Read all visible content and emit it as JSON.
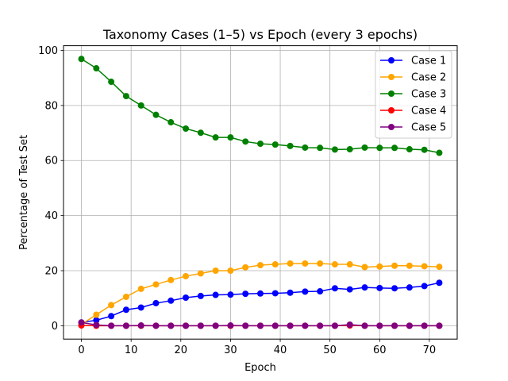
{
  "chart_data": {
    "type": "line",
    "title": "Taxonomy Cases (1–5) vs Epoch (every 3 epochs)",
    "xlabel": "Epoch",
    "ylabel": "Percentage of Test Set",
    "xlim": [
      -3.6,
      75.6
    ],
    "ylim": [
      -4.85,
      101.7
    ],
    "xticks": [
      0,
      10,
      20,
      30,
      40,
      50,
      60,
      70
    ],
    "yticks": [
      0,
      20,
      40,
      60,
      80,
      100
    ],
    "grid": true,
    "legend_position": "top-right",
    "x": [
      0,
      3,
      6,
      9,
      12,
      15,
      18,
      21,
      24,
      27,
      30,
      33,
      36,
      39,
      42,
      45,
      48,
      51,
      54,
      57,
      60,
      63,
      66,
      69,
      72
    ],
    "series": [
      {
        "name": "Case 1",
        "color": "#0000ff",
        "values": [
          1.2,
          2.0,
          3.5,
          5.8,
          6.6,
          8.2,
          9.1,
          10.2,
          10.8,
          11.2,
          11.3,
          11.6,
          11.7,
          11.8,
          12.0,
          12.4,
          12.5,
          13.6,
          13.2,
          13.9,
          13.7,
          13.6,
          13.9,
          14.4,
          15.6
        ]
      },
      {
        "name": "Case 2",
        "color": "#ffa500",
        "values": [
          0.5,
          4.0,
          7.5,
          10.5,
          13.4,
          15.0,
          16.6,
          18.0,
          19.0,
          20.0,
          20.0,
          21.2,
          22.0,
          22.3,
          22.6,
          22.6,
          22.6,
          22.3,
          22.3,
          21.3,
          21.5,
          21.8,
          21.8,
          21.6,
          21.4
        ]
      },
      {
        "name": "Case 3",
        "color": "#008000",
        "values": [
          96.9,
          93.5,
          88.6,
          83.4,
          80.0,
          76.6,
          73.9,
          71.6,
          70.1,
          68.4,
          68.4,
          66.9,
          66.1,
          65.8,
          65.3,
          64.7,
          64.6,
          64.0,
          64.1,
          64.7,
          64.6,
          64.6,
          64.1,
          63.9,
          62.8
        ]
      },
      {
        "name": "Case 4",
        "color": "#ff0000",
        "values": [
          0.1,
          0.0,
          0.0,
          0.0,
          0.0,
          0.0,
          0.0,
          0.0,
          0.0,
          0.0,
          0.0,
          0.0,
          0.0,
          0.0,
          0.0,
          0.0,
          0.0,
          0.0,
          0.1,
          0.0,
          0.0,
          0.0,
          0.0,
          0.0,
          0.0
        ]
      },
      {
        "name": "Case 5",
        "color": "#800080",
        "values": [
          1.2,
          0.3,
          0.0,
          0.0,
          0.1,
          0.0,
          0.0,
          0.0,
          0.0,
          0.0,
          0.1,
          0.0,
          0.0,
          0.0,
          0.0,
          0.0,
          0.0,
          0.0,
          0.4,
          0.0,
          0.0,
          0.0,
          0.0,
          0.0,
          0.0
        ]
      }
    ]
  }
}
